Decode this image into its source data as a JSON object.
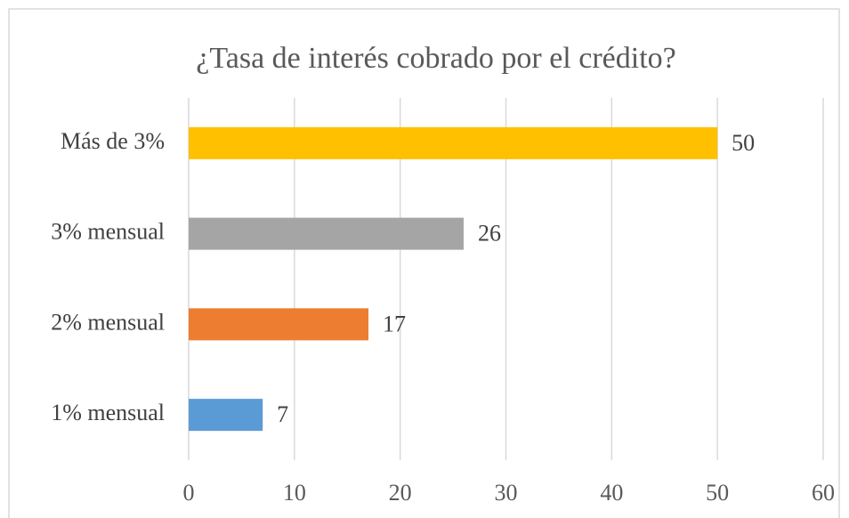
{
  "chart_data": {
    "type": "bar",
    "orientation": "horizontal",
    "title": "¿Tasa de interés cobrado por el crédito?",
    "categories": [
      "Más de 3%",
      "3% mensual",
      "2% mensual",
      "1% mensual"
    ],
    "values": [
      50,
      26,
      17,
      7
    ],
    "colors": [
      "#ffc000",
      "#a5a5a5",
      "#ed7d31",
      "#5b9bd5"
    ],
    "xlim": [
      0,
      60
    ],
    "xticks": [
      0,
      10,
      20,
      30,
      40,
      50,
      60
    ],
    "grid": true
  }
}
